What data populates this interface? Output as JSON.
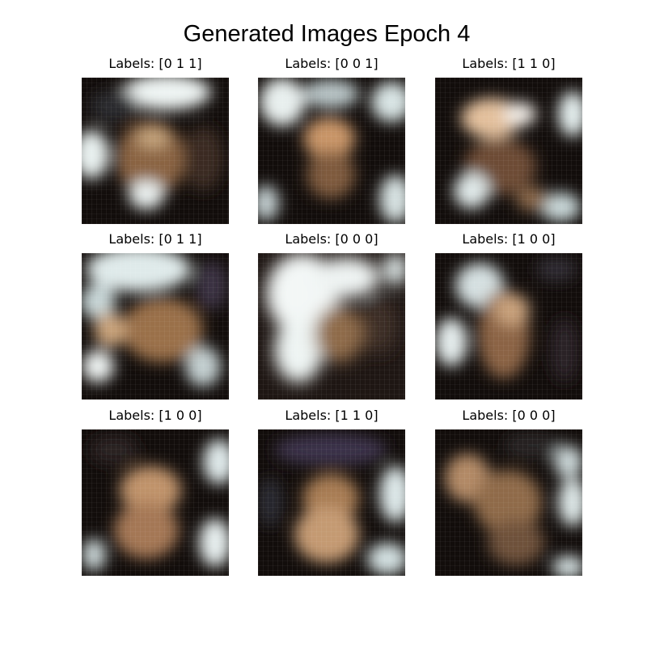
{
  "figure": {
    "title": "Generated Images Epoch 4",
    "panels": [
      {
        "label": "Labels: [0 1 1]"
      },
      {
        "label": "Labels: [0 0 1]"
      },
      {
        "label": "Labels: [1 1 0]"
      },
      {
        "label": "Labels: [0 1 1]"
      },
      {
        "label": "Labels: [0 0 0]"
      },
      {
        "label": "Labels: [1 0 0]"
      },
      {
        "label": "Labels: [1 0 0]"
      },
      {
        "label": "Labels: [1 1 0]"
      },
      {
        "label": "Labels: [0 0 0]"
      }
    ]
  },
  "colors": {
    "background": "#ffffff",
    "image_base": "#120d0b",
    "skin": "#b98a5c",
    "highlight": "#f2f7f6",
    "shadow": "#1a1210"
  }
}
